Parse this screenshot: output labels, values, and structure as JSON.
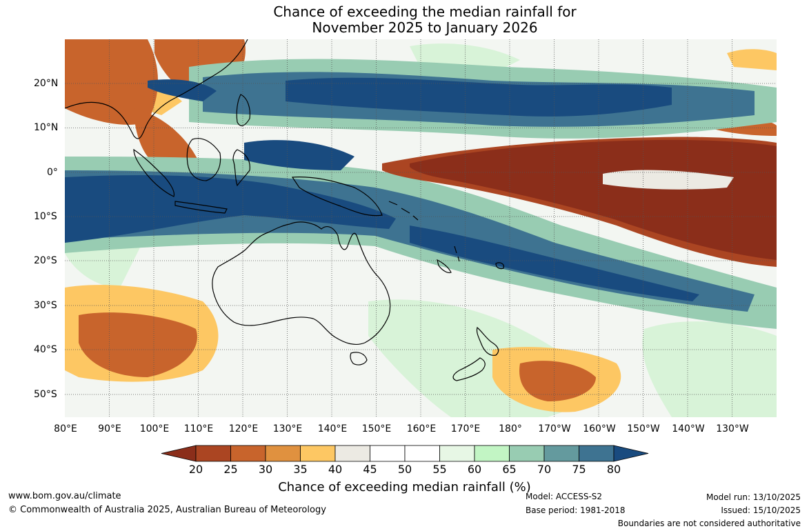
{
  "title": {
    "line1": "Chance of exceeding the median rainfall for",
    "line2": "November 2025 to January 2026"
  },
  "map": {
    "lon_labels": [
      "80°E",
      "90°E",
      "100°E",
      "110°E",
      "120°E",
      "130°E",
      "140°E",
      "150°E",
      "160°E",
      "170°E",
      "180°",
      "170°W",
      "160°W",
      "150°W",
      "140°W",
      "130°W"
    ],
    "lat_labels": [
      "20°N",
      "10°N",
      "0°",
      "10°S",
      "20°S",
      "30°S",
      "40°S",
      "50°S"
    ]
  },
  "colorbar": {
    "ticks": [
      "20",
      "25",
      "30",
      "35",
      "40",
      "45",
      "50",
      "55",
      "60",
      "65",
      "70",
      "75",
      "80"
    ],
    "colors": [
      "#8b2e1a",
      "#ab4522",
      "#c8642c",
      "#e0913f",
      "#fdc763",
      "#eceae3",
      "#ffffff",
      "#ffffff",
      "#e7f7e5",
      "#c2f5c4",
      "#98ccb2",
      "#649a9e",
      "#3e7391",
      "#194b7f"
    ],
    "title": "Chance of exceeding median rainfall (%)"
  },
  "footer": {
    "website": "www.bom.gov.au/climate",
    "copyright": "© Commonwealth of Australia 2025, Australian Bureau of Meteorology",
    "model": "Model: ACCESS-S2",
    "base_period": "Base period: 1981-2018",
    "model_run": "Model run: 13/10/2025",
    "issued": "Issued: 15/10/2025",
    "disclaimer": "Boundaries are not considered authoritative"
  }
}
